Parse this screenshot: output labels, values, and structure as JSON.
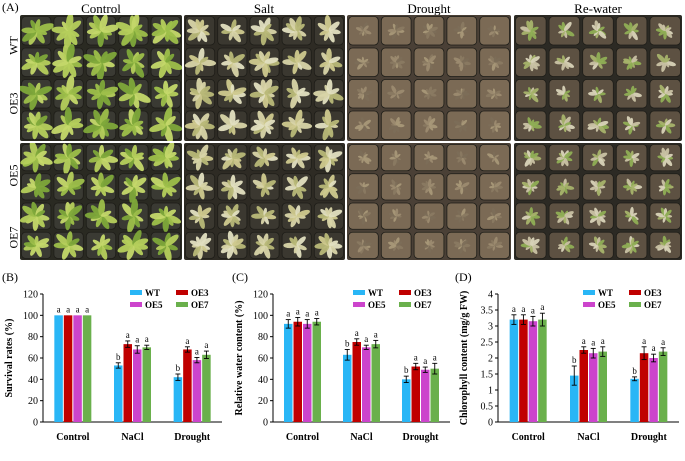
{
  "figure": {
    "photo_panel_label": "(A)",
    "photo_columns": [
      "Control",
      "Salt",
      "Drought",
      "Re-water"
    ],
    "photo_rows": [
      "WT",
      "OE3",
      "OE5",
      "OE7"
    ],
    "colors": {
      "WT": "#29b6f6",
      "OE3": "#c00000",
      "OE5": "#cc44cc",
      "OE7": "#6ab04c"
    }
  },
  "chart_data": [
    {
      "panel_label": "(B)",
      "type": "bar",
      "ylabel": "Survival rates (%)",
      "ylim": [
        0,
        120
      ],
      "yticks": [
        0,
        20,
        40,
        60,
        80,
        100,
        120
      ],
      "categories": [
        "Control",
        "NaCl",
        "Drought"
      ],
      "legend": [
        "WT",
        "OE3",
        "OE5",
        "OE7"
      ],
      "series": [
        {
          "name": "WT",
          "values": [
            100,
            53,
            42
          ],
          "errors": [
            0,
            2.5,
            3
          ],
          "letters": [
            "a",
            "b",
            "b"
          ]
        },
        {
          "name": "OE3",
          "values": [
            100,
            73,
            68
          ],
          "errors": [
            0,
            3,
            2.5
          ],
          "letters": [
            "a",
            "a",
            "a"
          ]
        },
        {
          "name": "OE5",
          "values": [
            100,
            68,
            58
          ],
          "errors": [
            0,
            3.5,
            2.5
          ],
          "letters": [
            "a",
            "a",
            "a"
          ]
        },
        {
          "name": "OE7",
          "values": [
            100,
            70,
            63
          ],
          "errors": [
            0,
            2,
            3.5
          ],
          "letters": [
            "a",
            "a",
            "a"
          ]
        }
      ]
    },
    {
      "panel_label": "(C)",
      "type": "bar",
      "ylabel": "Relative water content (%)",
      "ylim": [
        0,
        120
      ],
      "yticks": [
        0,
        20,
        40,
        60,
        80,
        100,
        120
      ],
      "categories": [
        "Control",
        "NaCl",
        "Drought"
      ],
      "legend": [
        "WT",
        "OE3",
        "OE5",
        "OE7"
      ],
      "series": [
        {
          "name": "WT",
          "values": [
            92,
            63,
            40
          ],
          "errors": [
            4,
            5,
            3
          ],
          "letters": [
            "a",
            "b",
            "b"
          ]
        },
        {
          "name": "OE3",
          "values": [
            94,
            75,
            52
          ],
          "errors": [
            4,
            3,
            3
          ],
          "letters": [
            "a",
            "a",
            "a"
          ]
        },
        {
          "name": "OE5",
          "values": [
            92,
            70,
            49
          ],
          "errors": [
            4,
            2,
            2.5
          ],
          "letters": [
            "a",
            "a",
            "a"
          ]
        },
        {
          "name": "OE7",
          "values": [
            94,
            73,
            50
          ],
          "errors": [
            3,
            3.5,
            5
          ],
          "letters": [
            "a",
            "a",
            "a"
          ]
        }
      ]
    },
    {
      "panel_label": "(D)",
      "type": "bar",
      "ylabel": "Chlorophyll content (mg/g FW)",
      "ylim": [
        0,
        4
      ],
      "yticks": [
        0,
        0.5,
        1,
        1.5,
        2,
        2.5,
        3,
        3.5,
        4
      ],
      "categories": [
        "Control",
        "NaCl",
        "Drought"
      ],
      "legend": [
        "WT",
        "OE3",
        "OE5",
        "OE7"
      ],
      "series": [
        {
          "name": "WT",
          "values": [
            3.2,
            1.45,
            1.35
          ],
          "errors": [
            0.15,
            0.3,
            0.06
          ],
          "letters": [
            "a",
            "b",
            "b"
          ]
        },
        {
          "name": "OE3",
          "values": [
            3.2,
            2.25,
            2.15
          ],
          "errors": [
            0.15,
            0.1,
            0.2
          ],
          "letters": [
            "a",
            "a",
            "a"
          ]
        },
        {
          "name": "OE5",
          "values": [
            3.15,
            2.15,
            2.0
          ],
          "errors": [
            0.15,
            0.15,
            0.12
          ],
          "letters": [
            "a",
            "a",
            "a"
          ]
        },
        {
          "name": "OE7",
          "values": [
            3.2,
            2.2,
            2.2
          ],
          "errors": [
            0.2,
            0.15,
            0.12
          ],
          "letters": [
            "a",
            "a",
            "a"
          ]
        }
      ]
    }
  ]
}
